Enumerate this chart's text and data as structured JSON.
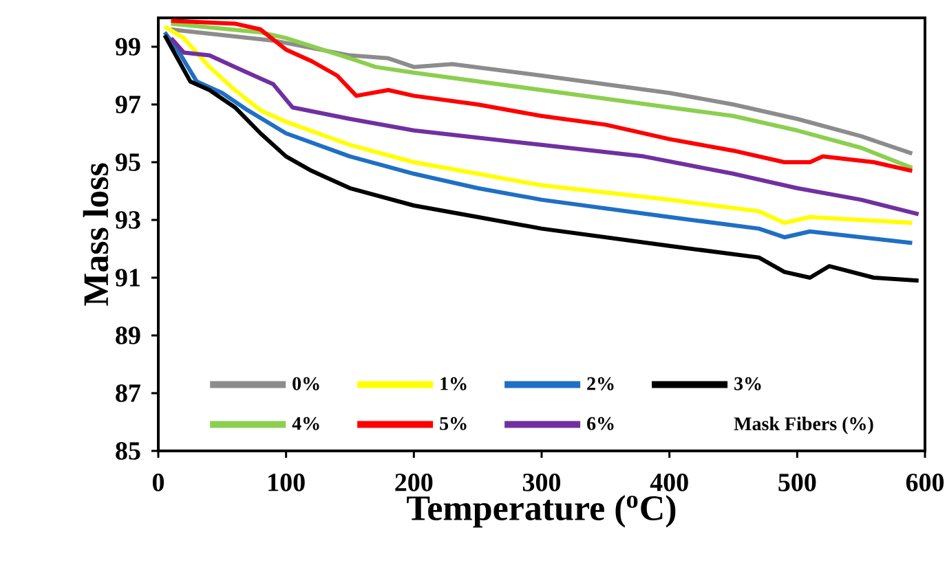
{
  "chart_data": {
    "type": "line",
    "xlabel": "Temperature ($^{o}$C)",
    "ylabel": "Mass loss",
    "legend_title": "Mask Fibers (%)",
    "legend": "bottom",
    "line_style": "solid",
    "xlim": [
      0,
      600
    ],
    "xticks": [
      0,
      100,
      200,
      300,
      400,
      500,
      600
    ],
    "ylim": [
      85,
      100
    ],
    "yticks": [
      85,
      87,
      89,
      91,
      93,
      95,
      97,
      99
    ],
    "series": [
      {
        "name": "0%",
        "color": "#8c8c8c",
        "x": [
          10,
          92,
          150,
          180,
          200,
          230,
          300,
          400,
          450,
          500,
          550,
          590
        ],
        "values": [
          99.6,
          99.2,
          98.7,
          98.6,
          98.3,
          98.4,
          98.0,
          97.4,
          97.0,
          96.5,
          95.9,
          95.3
        ]
      },
      {
        "name": "1%",
        "color": "#ffff00",
        "x": [
          5,
          20,
          40,
          60,
          80,
          100,
          150,
          200,
          250,
          300,
          400,
          470,
          490,
          510,
          550,
          590
        ],
        "values": [
          99.7,
          99.3,
          98.3,
          97.5,
          96.8,
          96.4,
          95.6,
          95.0,
          94.6,
          94.2,
          93.7,
          93.3,
          92.9,
          93.1,
          93.0,
          92.9
        ]
      },
      {
        "name": "2%",
        "color": "#1f6fc4",
        "x": [
          5,
          15,
          30,
          50,
          70,
          100,
          150,
          200,
          250,
          300,
          400,
          470,
          490,
          510,
          590
        ],
        "values": [
          99.5,
          98.9,
          97.8,
          97.4,
          96.8,
          96.0,
          95.2,
          94.6,
          94.1,
          93.7,
          93.1,
          92.7,
          92.4,
          92.6,
          92.2
        ]
      },
      {
        "name": "3%",
        "color": "#000000",
        "x": [
          5,
          15,
          25,
          40,
          60,
          80,
          100,
          120,
          150,
          200,
          250,
          300,
          400,
          470,
          490,
          510,
          525,
          560,
          595
        ],
        "values": [
          99.4,
          98.6,
          97.8,
          97.5,
          96.9,
          96.0,
          95.2,
          94.7,
          94.1,
          93.5,
          93.1,
          92.7,
          92.1,
          91.7,
          91.2,
          91.0,
          91.4,
          91.0,
          90.9
        ]
      },
      {
        "name": "4%",
        "color": "#8ccf4f",
        "x": [
          10,
          80,
          100,
          150,
          170,
          200,
          300,
          400,
          450,
          500,
          550,
          590
        ],
        "values": [
          99.8,
          99.5,
          99.3,
          98.6,
          98.3,
          98.1,
          97.5,
          96.9,
          96.6,
          96.1,
          95.5,
          94.8
        ]
      },
      {
        "name": "5%",
        "color": "#ff0000",
        "x": [
          10,
          60,
          80,
          100,
          120,
          140,
          155,
          180,
          200,
          250,
          300,
          350,
          400,
          450,
          490,
          510,
          520,
          560,
          590
        ],
        "values": [
          99.9,
          99.8,
          99.6,
          98.9,
          98.5,
          98.0,
          97.3,
          97.5,
          97.3,
          97.0,
          96.6,
          96.3,
          95.8,
          95.4,
          95.0,
          95.0,
          95.2,
          95.0,
          94.7
        ]
      },
      {
        "name": "6%",
        "color": "#7030a0",
        "x": [
          10,
          20,
          40,
          60,
          80,
          90,
          105,
          150,
          200,
          300,
          380,
          450,
          500,
          550,
          595
        ],
        "values": [
          99.3,
          98.8,
          98.7,
          98.3,
          97.9,
          97.7,
          96.9,
          96.5,
          96.1,
          95.6,
          95.2,
          94.6,
          94.1,
          93.7,
          93.2
        ]
      }
    ]
  }
}
